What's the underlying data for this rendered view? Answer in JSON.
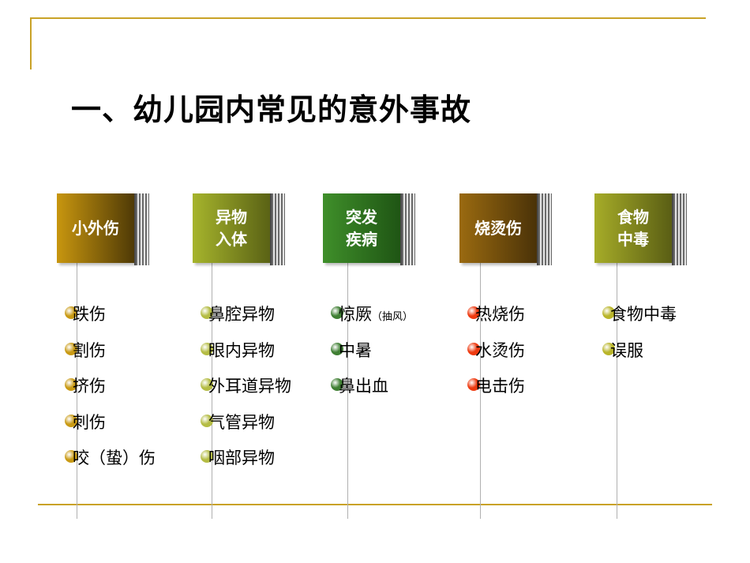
{
  "title": "一、幼儿园内常见的意外事故",
  "categories": [
    {
      "label_lines": [
        "小外伤"
      ],
      "box_gradient": [
        "#c8960f",
        "#4f3a06"
      ],
      "dot_color": "#c99a14",
      "items": [
        {
          "text": "跌伤"
        },
        {
          "text": "割伤"
        },
        {
          "text": "挤伤"
        },
        {
          "text": "刺伤"
        },
        {
          "text": "咬（蛰）伤"
        }
      ]
    },
    {
      "label_lines": [
        "异物",
        "入体"
      ],
      "box_gradient": [
        "#a6b42c",
        "#5a6215"
      ],
      "dot_color": "#b4bc44",
      "items": [
        {
          "text": "鼻腔异物"
        },
        {
          "text": "眼内异物"
        },
        {
          "text": "外耳道异物"
        },
        {
          "text": "气管异物"
        },
        {
          "text": "咽部异物"
        }
      ]
    },
    {
      "label_lines": [
        "突发",
        "疾病"
      ],
      "box_gradient": [
        "#3f8f2a",
        "#1f5514"
      ],
      "dot_color": "#3f7f33",
      "items": [
        {
          "text": "惊厥",
          "note": "（抽风）"
        },
        {
          "text": "中暑"
        },
        {
          "text": "鼻出血"
        }
      ]
    },
    {
      "label_lines": [
        "烧烫伤"
      ],
      "box_gradient": [
        "#9a6a10",
        "#4a3208"
      ],
      "dot_color": "#ee3a10",
      "items": [
        {
          "text": "热烧伤"
        },
        {
          "text": "水烫伤"
        },
        {
          "text": "电击伤"
        }
      ]
    },
    {
      "label_lines": [
        "食物",
        "中毒"
      ],
      "box_gradient": [
        "#a6ac28",
        "#5a5e14"
      ],
      "dot_color": "#b9b52a",
      "items": [
        {
          "text": "食物中毒"
        },
        {
          "text": "误服"
        }
      ]
    }
  ]
}
